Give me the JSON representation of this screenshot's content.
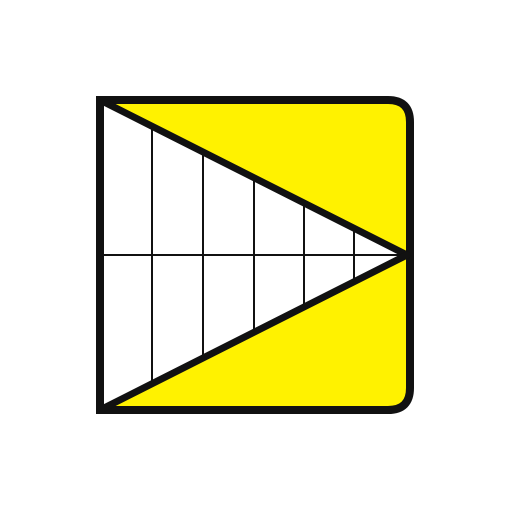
{
  "logo": {
    "icon": "triangle-grid-flag-icon",
    "colors": {
      "fill": "#fff200",
      "outline": "#111111",
      "inner": "#ffffff",
      "background": "#ffffff"
    }
  }
}
